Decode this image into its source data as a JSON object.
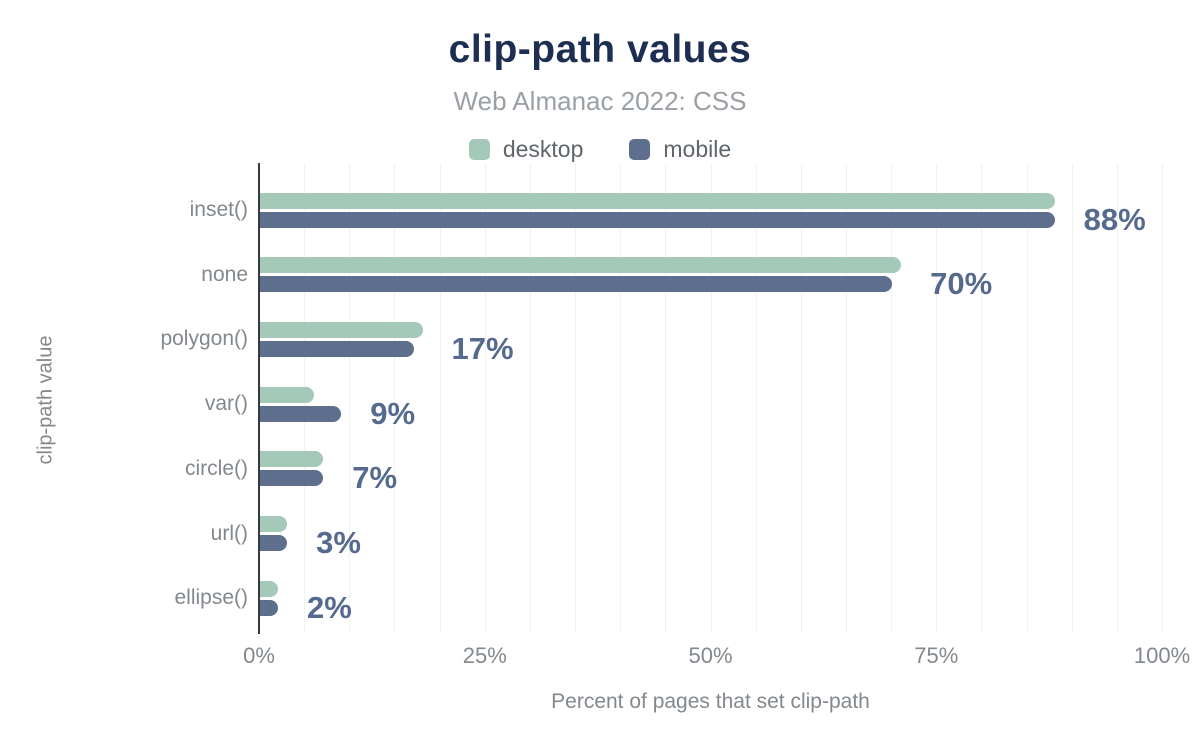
{
  "header": {
    "title": "clip-path values",
    "subtitle": "Web Almanac 2022: CSS"
  },
  "chart_data": {
    "type": "bar",
    "orientation": "horizontal",
    "title": "clip-path values",
    "subtitle": "Web Almanac 2022: CSS",
    "categories": [
      "inset()",
      "none",
      "polygon()",
      "var()",
      "circle()",
      "url()",
      "ellipse()"
    ],
    "series": [
      {
        "name": "desktop",
        "color": "#a4c9b8",
        "values": [
          88,
          71,
          18,
          6,
          7,
          3,
          2
        ]
      },
      {
        "name": "mobile",
        "color": "#5e6f8d",
        "values": [
          88,
          70,
          17,
          9,
          7,
          3,
          2
        ]
      }
    ],
    "value_labels": [
      "88%",
      "70%",
      "17%",
      "9%",
      "7%",
      "3%",
      "2%"
    ],
    "xlabel": "Percent of pages that set clip-path",
    "ylabel": "clip-path value",
    "xlim": [
      0,
      100
    ],
    "xticks": [
      0,
      25,
      50,
      75,
      100
    ],
    "xtick_labels": [
      "0%",
      "25%",
      "50%",
      "75%",
      "100%"
    ],
    "gridline_step_percent": 5,
    "grid": "vertical-only",
    "legend_position": "top",
    "colors": {
      "title": "#1c2e51",
      "subtitle": "#9aa0a5",
      "axis_text": "#83888d",
      "legend_text": "#5f656b",
      "value_label": "#556a8e",
      "axis_line": "#36393e",
      "gridline": "#f3f1f0",
      "background": "#ffffff"
    }
  }
}
